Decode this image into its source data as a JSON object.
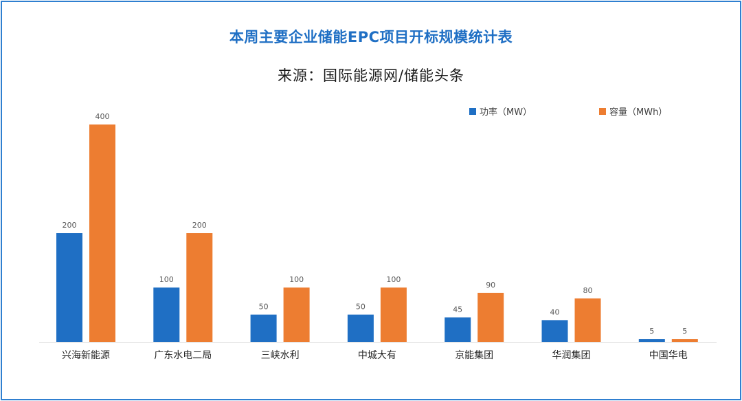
{
  "title": "本周主要企业储能EPC项目开标规模统计表",
  "subtitle": "来源：国际能源网/储能头条",
  "colors": {
    "power": "#1f6fc4",
    "capacity": "#ed7d31",
    "border": "#2f7fd0",
    "title": "#1f6fc4"
  },
  "chart_data": {
    "type": "bar",
    "title": "本周主要企业储能EPC项目开标规模统计表",
    "subtitle": "来源：国际能源网/储能头条",
    "categories": [
      "兴海新能源",
      "广东水电二局",
      "三峡水利",
      "中城大有",
      "京能集团",
      "华润集团",
      "中国华电"
    ],
    "series": [
      {
        "name": "功率（MW）",
        "values": [
          200,
          100,
          50,
          50,
          45,
          40,
          5
        ]
      },
      {
        "name": "容量（MWh）",
        "values": [
          400,
          200,
          100,
          100,
          90,
          80,
          5
        ]
      }
    ],
    "ylim": [
      0,
      400
    ],
    "grid": false,
    "legend_position": "top-right"
  }
}
